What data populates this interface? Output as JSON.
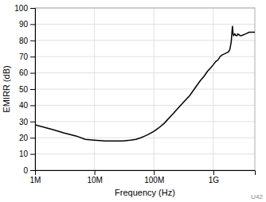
{
  "chart_data": {
    "type": "line",
    "xlabel": "Frequency (Hz)",
    "ylabel": "EMIRR (dB)",
    "annotations": [
      "U42"
    ],
    "log": "x",
    "grid": true,
    "color": "#000000",
    "xlim": [
      1000000.0,
      5000000000.0
    ],
    "ylim": [
      0,
      100
    ],
    "xticks": [
      {
        "value": 1000000.0,
        "label": "1M"
      },
      {
        "value": 10000000.0,
        "label": "10M"
      },
      {
        "value": 100000000.0,
        "label": "100M"
      },
      {
        "value": 1000000000.0,
        "label": "1G"
      }
    ],
    "yticks": [
      0,
      10,
      20,
      30,
      40,
      50,
      60,
      70,
      80,
      90,
      100
    ],
    "x": [
      1000000.0,
      2000000.0,
      3000000.0,
      5000000.0,
      7000000.0,
      10000000.0,
      15000000.0,
      20000000.0,
      30000000.0,
      40000000.0,
      50000000.0,
      60000000.0,
      70000000.0,
      80000000.0,
      100000000.0,
      120000000.0,
      150000000.0,
      200000000.0,
      300000000.0,
      400000000.0,
      500000000.0,
      600000000.0,
      700000000.0,
      800000000.0,
      900000000.0,
      1000000000.0,
      1100000000.0,
      1200000000.0,
      1300000000.0,
      1400000000.0,
      1500000000.0,
      1600000000.0,
      1700000000.0,
      1800000000.0,
      1900000000.0,
      2000000000.0,
      2100000000.0,
      2150000000.0,
      2200000000.0,
      2300000000.0,
      2400000000.0,
      2500000000.0,
      2600000000.0,
      2700000000.0,
      2800000000.0,
      2900000000.0,
      3000000000.0,
      3500000000.0,
      4000000000.0,
      5000000000.0
    ],
    "values": [
      28,
      25,
      23,
      21,
      19,
      18.5,
      18,
      18,
      18,
      18.5,
      19,
      20,
      21,
      22,
      24,
      26,
      29,
      34,
      41,
      46,
      51,
      55,
      58,
      61,
      63,
      65,
      67,
      68,
      70,
      71,
      71.5,
      72,
      72.5,
      73,
      74.5,
      79,
      89,
      84,
      83,
      84,
      83,
      83,
      84,
      83.5,
      83,
      83,
      83,
      84,
      85,
      85
    ]
  }
}
